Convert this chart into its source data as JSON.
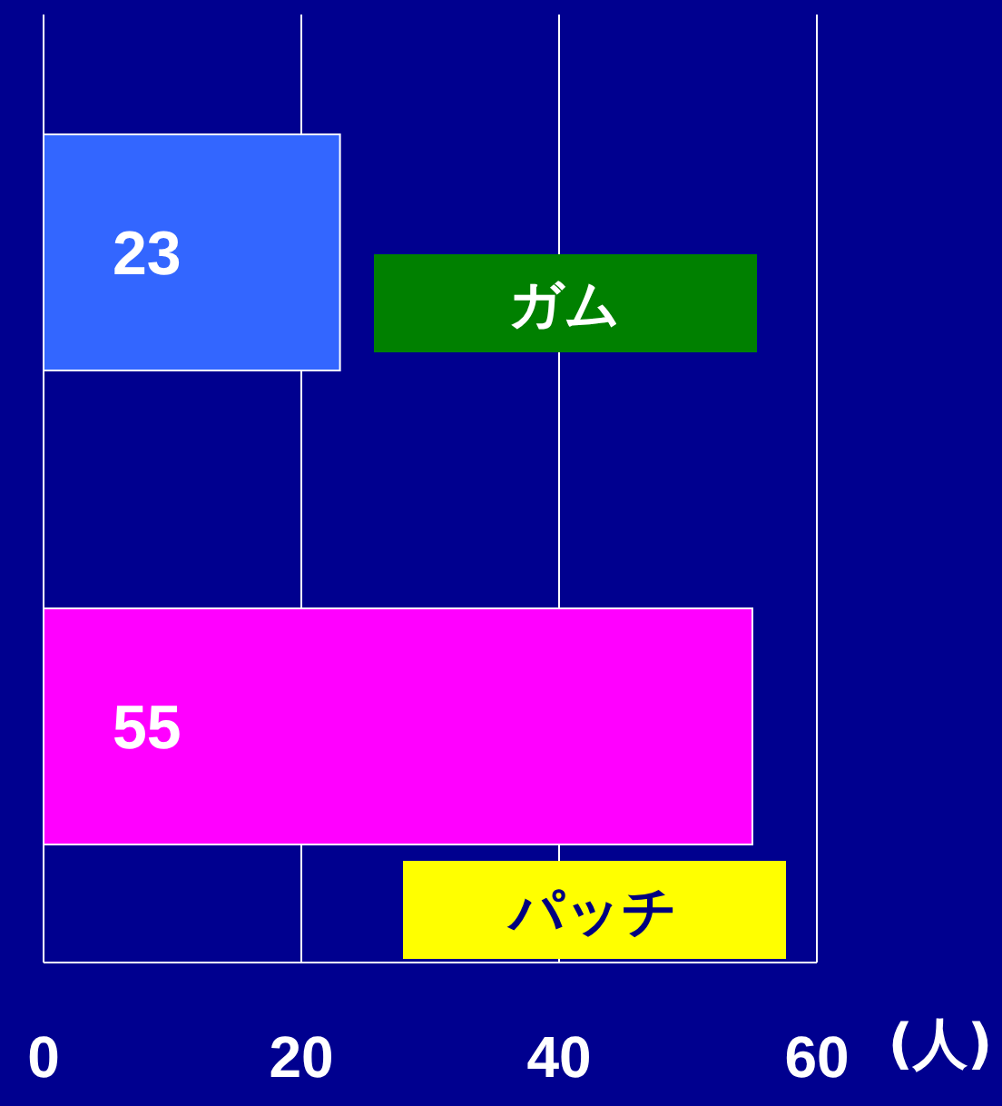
{
  "chart_data": {
    "type": "bar",
    "orientation": "horizontal",
    "categories": [
      "ガム",
      "パッチ"
    ],
    "values": [
      23,
      55
    ],
    "colors": [
      "#3366ff",
      "#ff00ff"
    ],
    "xlim": [
      0,
      60
    ],
    "xticks": [
      0,
      20,
      40,
      60
    ],
    "xlabel": "(人)",
    "data_labels": true,
    "grid": "x",
    "tick_labels": "x"
  }
}
